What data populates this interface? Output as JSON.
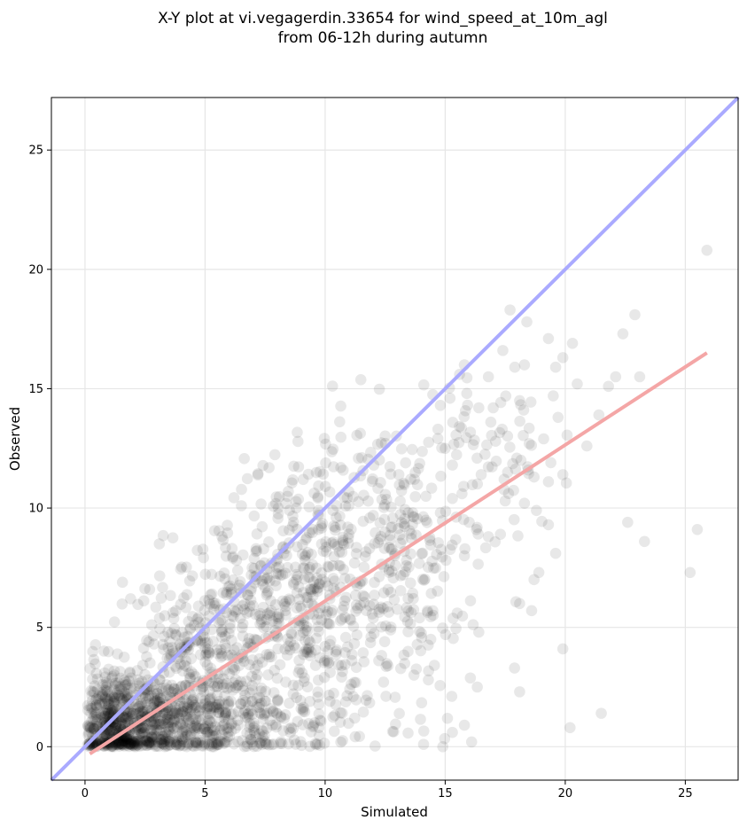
{
  "chart_data": {
    "type": "scatter",
    "title_line1": "X-Y plot at vi.vegagerdin.33654 for wind_speed_at_10m_agl",
    "title_line2": "from 06-12h during autumn",
    "xlabel": "Simulated",
    "ylabel": "Observed",
    "xlim": [
      -1.4,
      27.2
    ],
    "ylim": [
      -1.4,
      27.2
    ],
    "xticks": [
      0,
      5,
      10,
      15,
      20,
      25
    ],
    "yticks": [
      0,
      5,
      10,
      15,
      20,
      25
    ],
    "grid": true,
    "colors": {
      "points": "#000000",
      "identity_line": "#aaaaff",
      "fit_line": "#f4a6a6",
      "grid": "#e6e6e6"
    },
    "identity_line": {
      "x": [
        -1.4,
        27.2
      ],
      "y": [
        -1.4,
        27.2
      ]
    },
    "fit_line": {
      "x": [
        0.2,
        25.9
      ],
      "y": [
        -0.3,
        16.5
      ]
    },
    "outlier_points": [
      {
        "x": 25.9,
        "y": 20.8
      },
      {
        "x": 17.7,
        "y": 18.3
      },
      {
        "x": 22.9,
        "y": 18.1
      },
      {
        "x": 18.4,
        "y": 17.8
      },
      {
        "x": 22.4,
        "y": 17.3
      },
      {
        "x": 19.3,
        "y": 17.1
      },
      {
        "x": 20.3,
        "y": 16.9
      },
      {
        "x": 17.4,
        "y": 16.6
      },
      {
        "x": 19.9,
        "y": 16.3
      },
      {
        "x": 15.8,
        "y": 16.0
      },
      {
        "x": 18.3,
        "y": 16.0
      },
      {
        "x": 19.6,
        "y": 15.9
      },
      {
        "x": 17.9,
        "y": 15.9
      },
      {
        "x": 23.1,
        "y": 15.5
      },
      {
        "x": 22.1,
        "y": 15.5
      },
      {
        "x": 16.8,
        "y": 15.5
      },
      {
        "x": 18.1,
        "y": 14.5
      },
      {
        "x": 16.4,
        "y": 14.2
      },
      {
        "x": 21.8,
        "y": 15.1
      },
      {
        "x": 20.5,
        "y": 15.2
      },
      {
        "x": 19.5,
        "y": 14.7
      },
      {
        "x": 19.7,
        "y": 13.8
      },
      {
        "x": 21.4,
        "y": 13.9
      },
      {
        "x": 19.1,
        "y": 12.9
      },
      {
        "x": 18.5,
        "y": 12.7
      },
      {
        "x": 20.9,
        "y": 12.6
      },
      {
        "x": 19.4,
        "y": 11.9
      },
      {
        "x": 19.9,
        "y": 11.4
      },
      {
        "x": 18.7,
        "y": 11.3
      },
      {
        "x": 19.3,
        "y": 11.1
      },
      {
        "x": 18.3,
        "y": 10.2
      },
      {
        "x": 18.8,
        "y": 9.9
      },
      {
        "x": 19.3,
        "y": 9.3
      },
      {
        "x": 22.6,
        "y": 9.4
      },
      {
        "x": 25.5,
        "y": 9.1
      },
      {
        "x": 23.3,
        "y": 8.6
      },
      {
        "x": 19.6,
        "y": 8.1
      },
      {
        "x": 25.2,
        "y": 7.3
      },
      {
        "x": 18.9,
        "y": 7.3
      },
      {
        "x": 18.7,
        "y": 7.0
      },
      {
        "x": 18.1,
        "y": 6.0
      },
      {
        "x": 18.6,
        "y": 5.7
      },
      {
        "x": 19.9,
        "y": 4.1
      },
      {
        "x": 18.1,
        "y": 2.3
      },
      {
        "x": 21.5,
        "y": 1.4
      },
      {
        "x": 20.2,
        "y": 0.8
      },
      {
        "x": 16.4,
        "y": 4.8
      },
      {
        "x": 15.5,
        "y": 5.6
      },
      {
        "x": 16.1,
        "y": 0.2
      },
      {
        "x": 15.8,
        "y": 0.9
      },
      {
        "x": 15.3,
        "y": 0.6
      },
      {
        "x": 14.9,
        "y": 0.0
      },
      {
        "x": 14.1,
        "y": 0.1
      },
      {
        "x": 14.3,
        "y": 2.8
      },
      {
        "x": 14.4,
        "y": 4.5
      },
      {
        "x": 13.7,
        "y": 3.0
      },
      {
        "x": 17.3,
        "y": 8.9
      },
      {
        "x": 16.8,
        "y": 8.8
      },
      {
        "x": 15.8,
        "y": 8.0
      },
      {
        "x": 16.3,
        "y": 9.1
      },
      {
        "x": 16.0,
        "y": 9.4
      },
      {
        "x": 17.5,
        "y": 10.3
      },
      {
        "x": 17.6,
        "y": 11.5
      },
      {
        "x": 17.1,
        "y": 12.8
      },
      {
        "x": 16.9,
        "y": 13.6
      },
      {
        "x": 17.0,
        "y": 14.2
      },
      {
        "x": 15.9,
        "y": 14.8
      },
      {
        "x": 15.2,
        "y": 14.6
      },
      {
        "x": 15.6,
        "y": 15.6
      },
      {
        "x": 15.0,
        "y": 12.5
      },
      {
        "x": 14.7,
        "y": 13.3
      },
      {
        "x": 15.3,
        "y": 11.8
      },
      {
        "x": 16.5,
        "y": 11.4
      },
      {
        "x": 15.7,
        "y": 10.6
      },
      {
        "x": 14.8,
        "y": 9.8
      },
      {
        "x": 15.3,
        "y": 10.4
      }
    ],
    "dense_clusters": [
      {
        "cx": 1.3,
        "cy": 1.0,
        "sx": 0.8,
        "sy": 1.1,
        "n": 420
      },
      {
        "cx": 3.2,
        "cy": 0.9,
        "sx": 1.4,
        "sy": 0.9,
        "n": 360
      },
      {
        "cx": 6.2,
        "cy": 1.2,
        "sx": 2.0,
        "sy": 1.1,
        "n": 220
      },
      {
        "cx": 4.8,
        "cy": 4.0,
        "sx": 1.7,
        "sy": 1.7,
        "n": 240
      },
      {
        "cx": 7.8,
        "cy": 5.2,
        "sx": 2.1,
        "sy": 2.2,
        "n": 230
      },
      {
        "cx": 9.8,
        "cy": 8.2,
        "sx": 2.0,
        "sy": 2.1,
        "n": 190
      },
      {
        "cx": 12.4,
        "cy": 9.2,
        "sx": 1.9,
        "sy": 2.4,
        "n": 160
      },
      {
        "cx": 10.2,
        "cy": 3.2,
        "sx": 2.2,
        "sy": 1.9,
        "n": 110
      },
      {
        "cx": 13.6,
        "cy": 6.3,
        "sx": 1.6,
        "sy": 2.6,
        "n": 80
      },
      {
        "cx": 16.9,
        "cy": 12.3,
        "sx": 1.4,
        "sy": 1.9,
        "n": 60
      }
    ]
  }
}
